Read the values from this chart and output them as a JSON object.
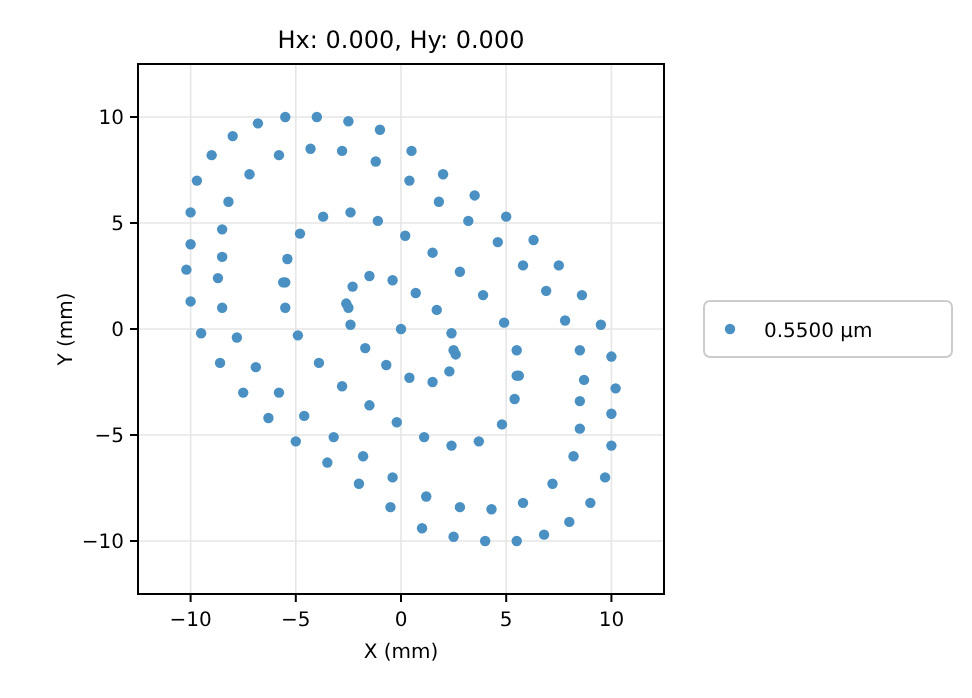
{
  "chart_data": {
    "type": "scatter",
    "title": "Hx: 0.000, Hy: 0.000",
    "xlabel": "X (mm)",
    "ylabel": "Y (mm)",
    "xlim": [
      -12.5,
      12.5
    ],
    "ylim": [
      -12.5,
      12.5
    ],
    "xticks": [
      {
        "value": -10,
        "label": "−10"
      },
      {
        "value": -5,
        "label": "−5"
      },
      0,
      5,
      10
    ],
    "yticks": [
      {
        "value": -10,
        "label": "−10"
      },
      {
        "value": -5,
        "label": "−5"
      },
      0,
      5,
      10
    ],
    "grid": true,
    "legend": "right",
    "marker": "circle",
    "series": [
      {
        "name": "0.5500 µm",
        "color": "#4a90c2",
        "x": [
          -10.0,
          -10.0,
          -9.7,
          -9.0,
          -8.0,
          -6.8,
          -5.5,
          -4.0,
          -2.5,
          -1.0,
          0.5,
          2.0,
          3.5,
          5.0,
          6.3,
          7.5,
          8.6,
          9.5,
          10.0,
          10.2,
          10.0,
          10.0,
          9.7,
          9.0,
          8.0,
          6.8,
          5.5,
          4.0,
          2.5,
          1.0,
          -0.5,
          -2.0,
          -3.5,
          -5.0,
          -6.3,
          -7.5,
          -8.6,
          -9.5,
          -10.0,
          -10.2,
          -8.5,
          -8.5,
          -8.2,
          -7.2,
          -5.8,
          -4.3,
          -2.8,
          -1.2,
          0.4,
          1.8,
          3.2,
          4.6,
          5.8,
          6.9,
          7.8,
          8.5,
          8.7,
          8.5,
          8.5,
          8.2,
          7.2,
          5.8,
          4.3,
          2.8,
          1.2,
          -0.4,
          -1.8,
          -3.2,
          -4.6,
          -5.8,
          -6.9,
          -7.8,
          -8.5,
          -8.7,
          -5.5,
          -5.4,
          -4.8,
          -3.7,
          -2.4,
          -1.1,
          0.2,
          1.5,
          2.8,
          3.9,
          4.9,
          5.5,
          5.6,
          5.5,
          5.4,
          4.8,
          3.7,
          2.4,
          1.1,
          -0.2,
          -1.5,
          -2.8,
          -3.9,
          -4.9,
          -5.5,
          -5.6,
          -2.5,
          -2.3,
          -1.5,
          -0.4,
          0.7,
          1.7,
          2.4,
          2.6,
          2.5,
          2.3,
          1.5,
          0.4,
          -0.7,
          -1.7,
          -2.4,
          -2.6,
          0
        ],
        "values": [
          4.0,
          5.5,
          7.0,
          8.2,
          9.1,
          9.7,
          10.0,
          10.0,
          9.8,
          9.4,
          8.4,
          7.3,
          6.3,
          5.3,
          4.2,
          3.0,
          1.6,
          0.2,
          -1.3,
          -2.8,
          -4.0,
          -5.5,
          -7.0,
          -8.2,
          -9.1,
          -9.7,
          -10.0,
          -10.0,
          -9.8,
          -9.4,
          -8.4,
          -7.3,
          -6.3,
          -5.3,
          -4.2,
          -3.0,
          -1.6,
          -0.2,
          1.3,
          2.8,
          3.4,
          4.7,
          6.0,
          7.3,
          8.2,
          8.5,
          8.4,
          7.9,
          7.0,
          6.0,
          5.1,
          4.1,
          3.0,
          1.8,
          0.4,
          -1.0,
          -2.4,
          -3.4,
          -4.7,
          -6.0,
          -7.3,
          -8.2,
          -8.5,
          -8.4,
          -7.9,
          -7.0,
          -6.0,
          -5.1,
          -4.1,
          -3.0,
          -1.8,
          -0.4,
          1.0,
          2.4,
          2.2,
          3.3,
          4.5,
          5.3,
          5.5,
          5.1,
          4.4,
          3.6,
          2.7,
          1.6,
          0.3,
          -1.0,
          -2.2,
          -2.2,
          -3.3,
          -4.5,
          -5.3,
          -5.5,
          -5.1,
          -4.4,
          -3.6,
          -2.7,
          -1.6,
          -0.3,
          1.0,
          2.2,
          1.0,
          2.0,
          2.5,
          2.3,
          1.7,
          0.9,
          -0.2,
          -1.2,
          -1.0,
          -2.0,
          -2.5,
          -2.3,
          -1.7,
          -0.9,
          0.2,
          1.2,
          0
        ]
      }
    ]
  }
}
